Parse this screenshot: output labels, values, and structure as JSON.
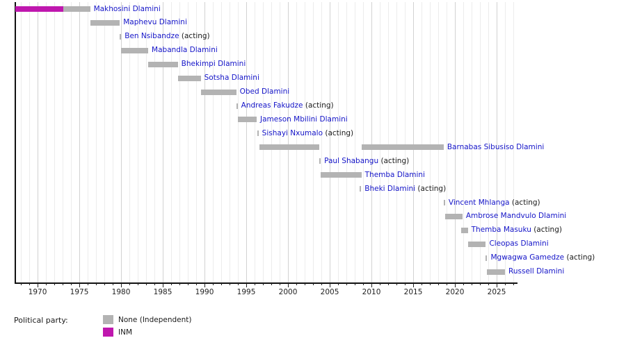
{
  "chart_data": {
    "type": "timeline",
    "title": "",
    "unit": "year",
    "x_axis": {
      "min": 1967.33,
      "max": 2027.5,
      "major_ticks": [
        1970,
        1975,
        1980,
        1985,
        1990,
        1995,
        2000,
        2005,
        2010,
        2015,
        2020,
        2025
      ],
      "minor_tick_step": 1,
      "first_minor_tick": 1968,
      "last_minor_tick": 2027
    },
    "colors": {
      "name_link": "#1414c8",
      "acting_text": "#1a1a1a",
      "axis": "#111111",
      "gridline_minor": "#ececec",
      "gridline_major": "#d2d2d2"
    },
    "parties": {
      "None": {
        "label": "None (Independent)",
        "color": "#b3b3b3"
      },
      "INM": {
        "label": "INM",
        "color": "#bf17ae"
      }
    },
    "legend_title": "Political party:",
    "legend_order": [
      "None",
      "INM"
    ],
    "acting_suffix": "(acting)",
    "rows": [
      {
        "name": "Makhosini Dlamini",
        "acting": false,
        "terms": [
          {
            "start": 1967.35,
            "end": 1973.05,
            "party": "INM"
          },
          {
            "start": 1973.05,
            "end": 1976.3,
            "party": "None"
          }
        ]
      },
      {
        "name": "Maphevu Dlamini",
        "acting": false,
        "terms": [
          {
            "start": 1976.3,
            "end": 1979.85,
            "party": "None"
          }
        ]
      },
      {
        "name": "Ben Nsibandze",
        "acting": true,
        "terms": [
          {
            "start": 1979.85,
            "end": 1980.02,
            "party": "None"
          }
        ]
      },
      {
        "name": "Mabandla Dlamini",
        "acting": false,
        "terms": [
          {
            "start": 1980.02,
            "end": 1983.25,
            "party": "None"
          }
        ]
      },
      {
        "name": "Bhekimpi Dlamini",
        "acting": false,
        "terms": [
          {
            "start": 1983.25,
            "end": 1986.8,
            "party": "None"
          }
        ]
      },
      {
        "name": "Sotsha Dlamini",
        "acting": false,
        "terms": [
          {
            "start": 1986.8,
            "end": 1989.55,
            "party": "None"
          }
        ]
      },
      {
        "name": "Obed Dlamini",
        "acting": false,
        "terms": [
          {
            "start": 1989.55,
            "end": 1993.8,
            "party": "None"
          }
        ]
      },
      {
        "name": "Andreas Fakudze",
        "acting": true,
        "terms": [
          {
            "start": 1993.8,
            "end": 1993.97,
            "party": "None"
          }
        ]
      },
      {
        "name": "Jameson Mbilini Dlamini",
        "acting": false,
        "terms": [
          {
            "start": 1993.97,
            "end": 1996.25,
            "party": "None"
          }
        ]
      },
      {
        "name": "Sishayi Nxumalo",
        "acting": true,
        "terms": [
          {
            "start": 1996.3,
            "end": 1996.47,
            "party": "None"
          }
        ]
      },
      {
        "name": "Barnabas Sibusiso Dlamini",
        "acting": false,
        "terms": [
          {
            "start": 1996.55,
            "end": 2003.75,
            "party": "None"
          },
          {
            "start": 2008.8,
            "end": 2018.65,
            "party": "None"
          }
        ]
      },
      {
        "name": "Paul Shabangu",
        "acting": true,
        "terms": [
          {
            "start": 2003.75,
            "end": 2003.92,
            "party": "None"
          }
        ]
      },
      {
        "name": "Themba Dlamini",
        "acting": false,
        "terms": [
          {
            "start": 2003.92,
            "end": 2008.8,
            "party": "None"
          }
        ]
      },
      {
        "name": "Bheki Dlamini",
        "acting": true,
        "terms": [
          {
            "start": 2008.6,
            "end": 2008.77,
            "party": "None"
          }
        ]
      },
      {
        "name": "Vincent Mhlanga",
        "acting": true,
        "terms": [
          {
            "start": 2018.65,
            "end": 2018.82,
            "party": "None"
          }
        ]
      },
      {
        "name": "Ambrose Mandvulo Dlamini",
        "acting": false,
        "terms": [
          {
            "start": 2018.82,
            "end": 2020.9,
            "party": "None"
          }
        ]
      },
      {
        "name": "Themba Masuku",
        "acting": true,
        "terms": [
          {
            "start": 2020.75,
            "end": 2021.55,
            "party": "None"
          }
        ]
      },
      {
        "name": "Cleopas Dlamini",
        "acting": false,
        "terms": [
          {
            "start": 2021.55,
            "end": 2023.7,
            "party": "None"
          }
        ]
      },
      {
        "name": "Mgwagwa Gamedze",
        "acting": true,
        "terms": [
          {
            "start": 2023.7,
            "end": 2023.87,
            "party": "None"
          }
        ]
      },
      {
        "name": "Russell Dlamini",
        "acting": false,
        "terms": [
          {
            "start": 2023.87,
            "end": 2026.0,
            "party": "None"
          }
        ]
      }
    ]
  }
}
